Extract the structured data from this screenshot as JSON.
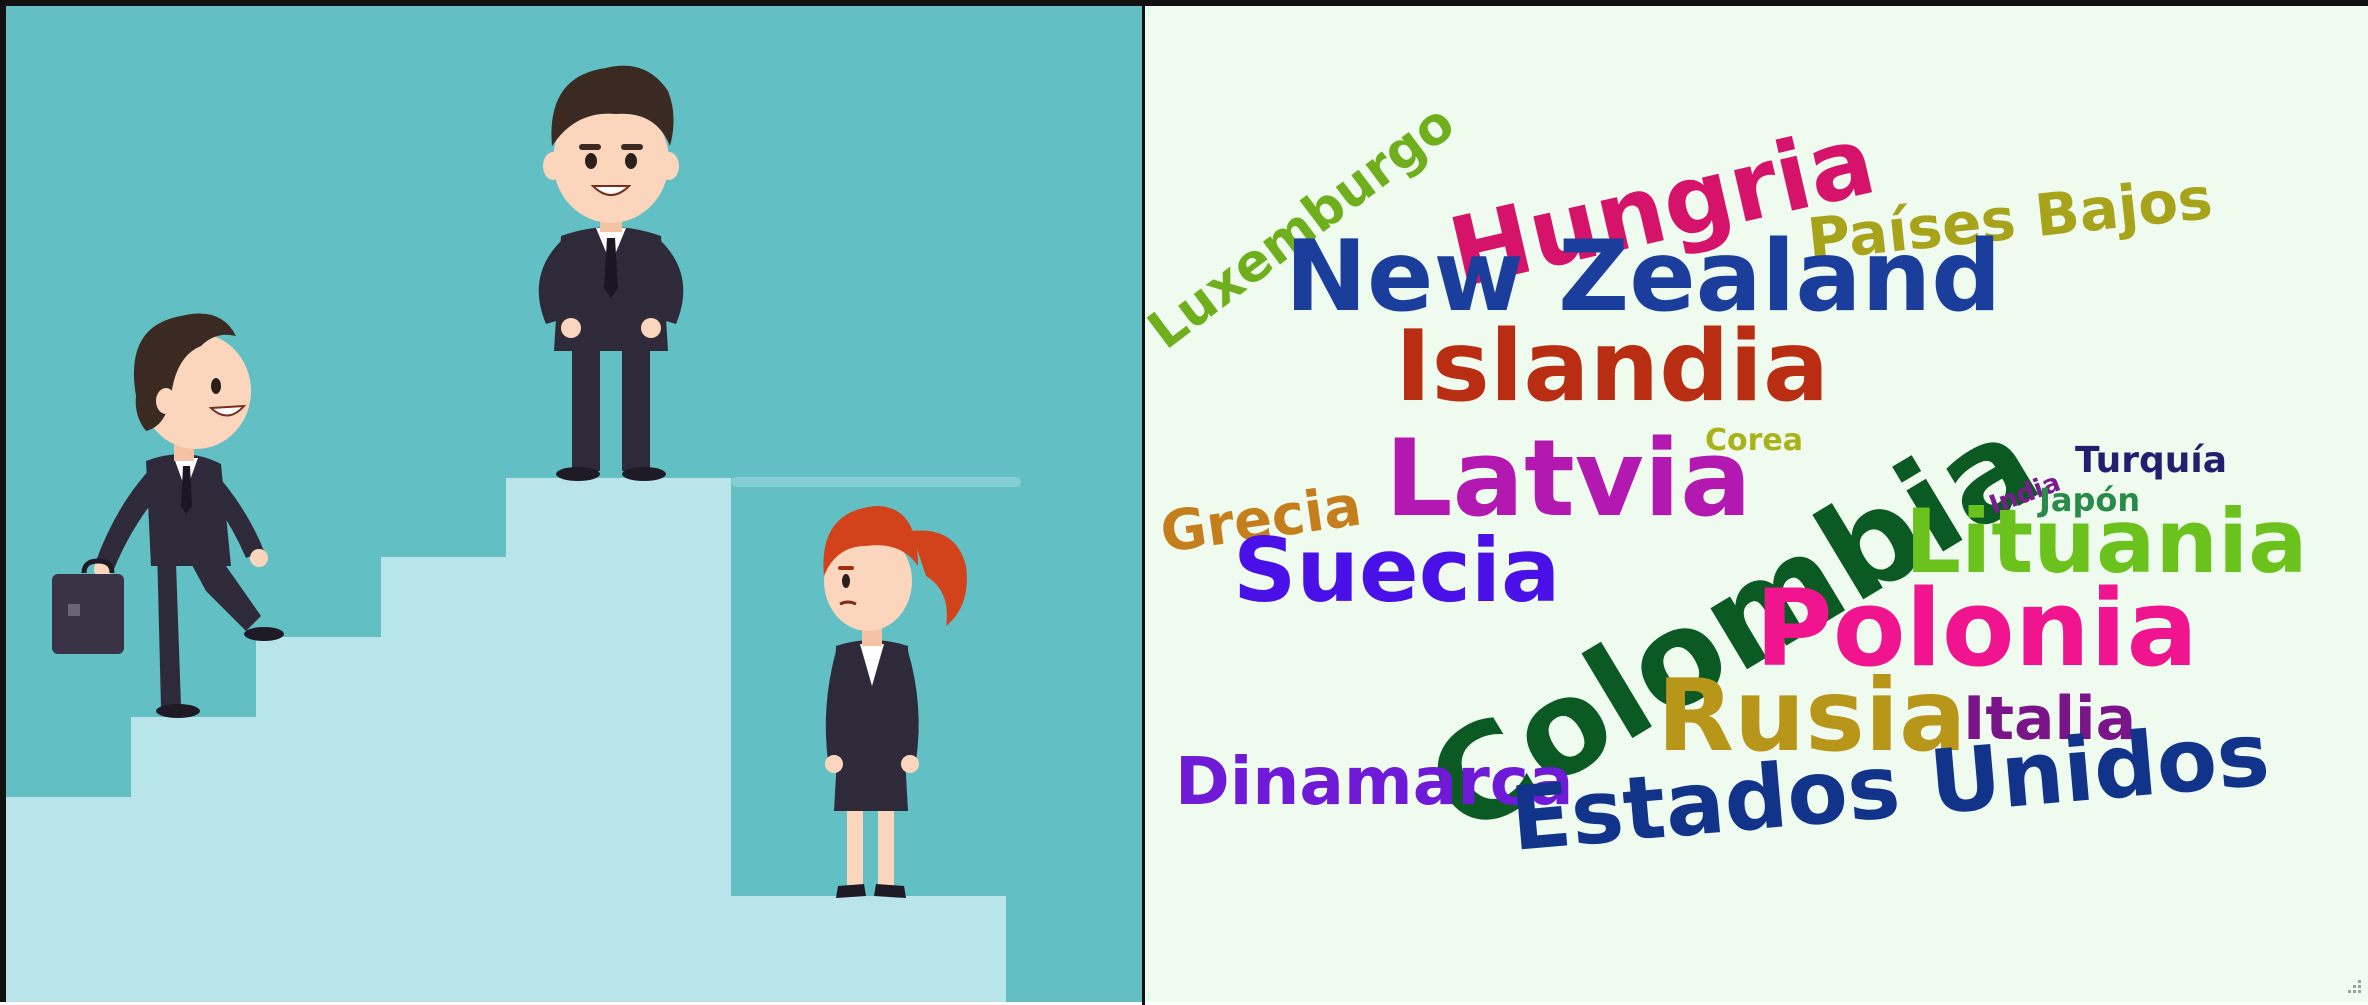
{
  "illustration": {
    "colors": {
      "background": "#62bfc4",
      "stairs": "#b8e4ea",
      "suit": "#2f2a3a",
      "hair_man": "#3b2a22",
      "hair_woman": "#d2431c",
      "skin": "#fbd6bd"
    },
    "figures": [
      "climbing-businessman",
      "standing-businessman",
      "waiting-businesswoman"
    ],
    "icons": [
      "briefcase-icon",
      "staircase"
    ]
  },
  "word_cloud": {
    "background": "#eefbee",
    "words": [
      {
        "id": "luxemburgo",
        "text": "Luxemburgo",
        "color": "#6fae1c"
      },
      {
        "id": "hungria",
        "text": "Hungria",
        "color": "#d6136b"
      },
      {
        "id": "paises-bajos",
        "text": "Países Bajos",
        "color": "#a7a31a"
      },
      {
        "id": "new-zealand",
        "text": "New Zealand",
        "color": "#1b3e9c"
      },
      {
        "id": "islandia",
        "text": "Islandia",
        "color": "#b92d12"
      },
      {
        "id": "colombia",
        "text": "Colombia",
        "color": "#0b5a23"
      },
      {
        "id": "corea",
        "text": "Corea",
        "color": "#a8b31a"
      },
      {
        "id": "latvia",
        "text": "Latvia",
        "color": "#b318b0"
      },
      {
        "id": "grecia",
        "text": "Grecia",
        "color": "#c47f1c"
      },
      {
        "id": "india",
        "text": "India",
        "color": "#7a1c8e"
      },
      {
        "id": "turquia",
        "text": "Turquía",
        "color": "#22206e"
      },
      {
        "id": "japon",
        "text": "Japón",
        "color": "#2a8a4a"
      },
      {
        "id": "lituania",
        "text": "Lituania",
        "color": "#6cc21c"
      },
      {
        "id": "suecia",
        "text": "Suecia",
        "color": "#4a10e8"
      },
      {
        "id": "polonia",
        "text": "Polonia",
        "color": "#f0148e"
      },
      {
        "id": "rusia",
        "text": "Rusia",
        "color": "#b8961a"
      },
      {
        "id": "italia",
        "text": "Italia",
        "color": "#7a1489"
      },
      {
        "id": "dinamarca",
        "text": "Dinamarca",
        "color": "#6e1ad6"
      },
      {
        "id": "estados-unidos",
        "text": "Estados Unidos",
        "color": "#11348a"
      }
    ]
  }
}
